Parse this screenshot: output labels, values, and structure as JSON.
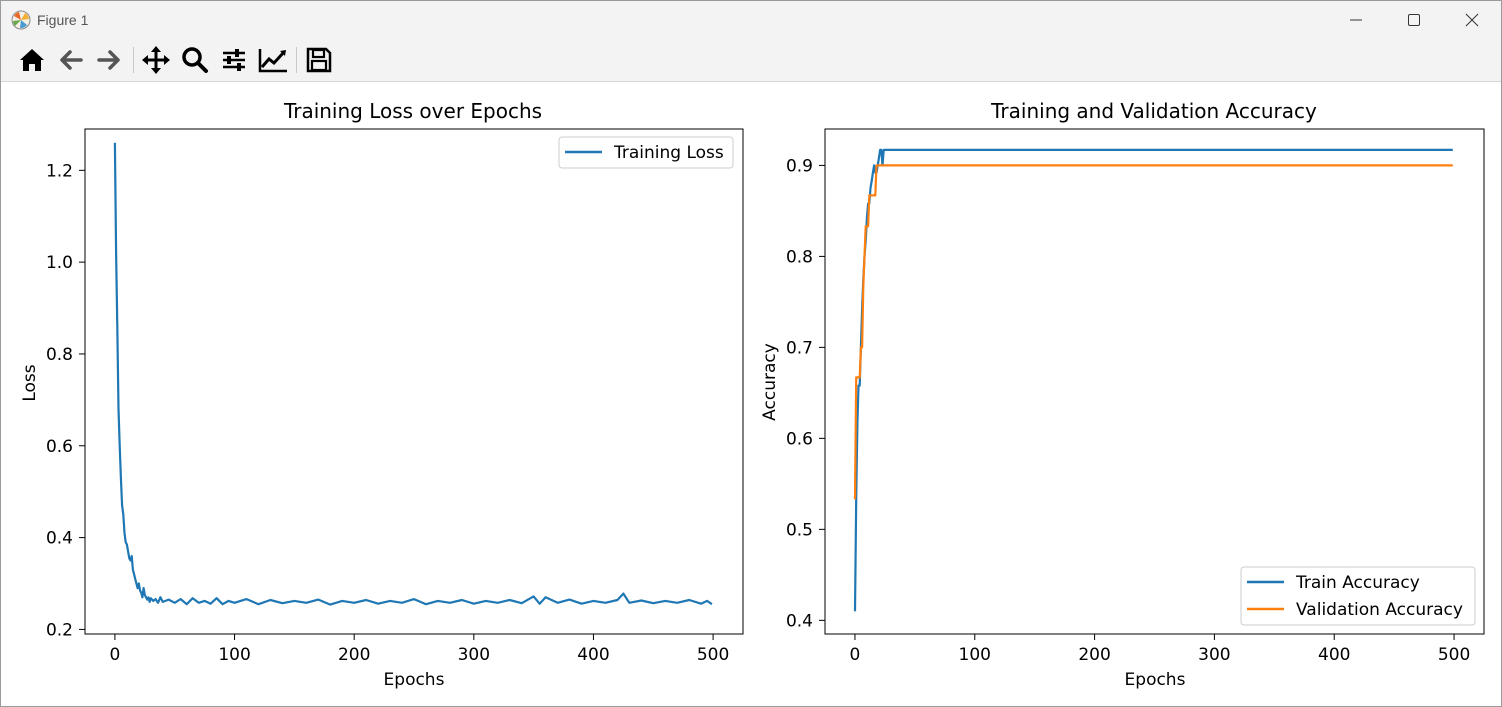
{
  "window": {
    "title": "Figure 1",
    "controls": {
      "minimize": "minimize",
      "maximize": "maximize",
      "close": "close"
    }
  },
  "toolbar": {
    "tools": [
      {
        "id": "home",
        "icon": "home-icon"
      },
      {
        "id": "back",
        "icon": "arrow-left-icon"
      },
      {
        "id": "forward",
        "icon": "arrow-right-icon"
      },
      {
        "id": "pan",
        "icon": "move-icon"
      },
      {
        "id": "zoom",
        "icon": "magnifier-icon"
      },
      {
        "id": "configure",
        "icon": "sliders-icon"
      },
      {
        "id": "edit",
        "icon": "line-chart-icon"
      },
      {
        "id": "save",
        "icon": "floppy-disk-icon"
      }
    ]
  },
  "chart_data": [
    {
      "type": "line",
      "title": "Training Loss over Epochs",
      "xlabel": "Epochs",
      "ylabel": "Loss",
      "xlim": [
        -25,
        525
      ],
      "ylim": [
        0.19,
        1.29
      ],
      "xticks": [
        "0",
        "100",
        "200",
        "300",
        "400",
        "500"
      ],
      "xtick_values": [
        0,
        100,
        200,
        300,
        400,
        500
      ],
      "yticks": [
        "0.2",
        "0.4",
        "0.6",
        "0.8",
        "1.0",
        "1.2"
      ],
      "ytick_values": [
        0.2,
        0.4,
        0.6,
        0.8,
        1.0,
        1.2
      ],
      "legend": "top-right",
      "grid": false,
      "series": [
        {
          "name": "Training Loss",
          "color": "#1f77b4",
          "x": [
            0,
            1,
            2,
            3,
            4,
            5,
            6,
            7,
            8,
            9,
            10,
            11,
            12,
            13,
            14,
            15,
            16,
            17,
            18,
            19,
            20,
            21,
            22,
            23,
            24,
            25,
            26,
            27,
            28,
            29,
            30,
            32,
            34,
            36,
            38,
            40,
            45,
            50,
            55,
            60,
            65,
            70,
            75,
            80,
            85,
            90,
            95,
            100,
            110,
            120,
            130,
            140,
            150,
            160,
            170,
            180,
            190,
            200,
            210,
            220,
            230,
            240,
            250,
            260,
            270,
            280,
            290,
            300,
            310,
            320,
            330,
            340,
            350,
            355,
            360,
            370,
            380,
            390,
            400,
            410,
            420,
            425,
            430,
            440,
            450,
            460,
            470,
            480,
            490,
            495,
            499
          ],
          "values": [
            1.26,
            1.02,
            0.86,
            0.68,
            0.6,
            0.53,
            0.47,
            0.45,
            0.41,
            0.39,
            0.385,
            0.37,
            0.355,
            0.35,
            0.36,
            0.33,
            0.32,
            0.31,
            0.3,
            0.29,
            0.3,
            0.285,
            0.28,
            0.27,
            0.29,
            0.275,
            0.27,
            0.265,
            0.27,
            0.26,
            0.268,
            0.262,
            0.266,
            0.258,
            0.27,
            0.26,
            0.265,
            0.258,
            0.266,
            0.255,
            0.268,
            0.258,
            0.262,
            0.256,
            0.268,
            0.255,
            0.262,
            0.258,
            0.266,
            0.255,
            0.264,
            0.257,
            0.262,
            0.258,
            0.265,
            0.254,
            0.262,
            0.258,
            0.264,
            0.256,
            0.262,
            0.258,
            0.266,
            0.255,
            0.262,
            0.258,
            0.264,
            0.256,
            0.262,
            0.258,
            0.264,
            0.257,
            0.272,
            0.256,
            0.27,
            0.258,
            0.265,
            0.256,
            0.262,
            0.258,
            0.264,
            0.278,
            0.258,
            0.263,
            0.257,
            0.262,
            0.258,
            0.264,
            0.256,
            0.262,
            0.255
          ]
        }
      ]
    },
    {
      "type": "line",
      "title": "Training and Validation Accuracy",
      "xlabel": "Epochs",
      "ylabel": "Accuracy",
      "xlim": [
        -25,
        525
      ],
      "ylim": [
        0.385,
        0.94
      ],
      "xticks": [
        "0",
        "100",
        "200",
        "300",
        "400",
        "500"
      ],
      "xtick_values": [
        0,
        100,
        200,
        300,
        400,
        500
      ],
      "yticks": [
        "0.4",
        "0.5",
        "0.6",
        "0.7",
        "0.8",
        "0.9"
      ],
      "ytick_values": [
        0.4,
        0.5,
        0.6,
        0.7,
        0.8,
        0.9
      ],
      "legend": "lower-right",
      "grid": false,
      "series": [
        {
          "name": "Train Accuracy",
          "color": "#1f77b4",
          "x": [
            0,
            1,
            2,
            3,
            4,
            5,
            6,
            7,
            8,
            9,
            10,
            11,
            12,
            13,
            14,
            15,
            16,
            17,
            18,
            19,
            20,
            21,
            22,
            23,
            24,
            25,
            30,
            40,
            60,
            100,
            200,
            300,
            400,
            499
          ],
          "values": [
            0.41,
            0.533,
            0.617,
            0.658,
            0.658,
            0.7,
            0.742,
            0.775,
            0.8,
            0.817,
            0.842,
            0.858,
            0.858,
            0.875,
            0.883,
            0.892,
            0.9,
            0.892,
            0.892,
            0.9,
            0.908,
            0.917,
            0.917,
            0.9,
            0.917,
            0.917,
            0.917,
            0.917,
            0.917,
            0.917,
            0.917,
            0.917,
            0.917,
            0.917
          ]
        },
        {
          "name": "Validation Accuracy",
          "color": "#ff7f0e",
          "x": [
            0,
            1,
            2,
            3,
            4,
            5,
            6,
            7,
            8,
            9,
            10,
            11,
            12,
            13,
            14,
            15,
            16,
            17,
            18,
            19,
            20,
            21,
            22,
            30,
            60,
            100,
            200,
            300,
            400,
            499
          ],
          "values": [
            0.533,
            0.667,
            0.667,
            0.667,
            0.667,
            0.7,
            0.7,
            0.767,
            0.8,
            0.833,
            0.833,
            0.833,
            0.867,
            0.867,
            0.867,
            0.867,
            0.867,
            0.867,
            0.9,
            0.9,
            0.9,
            0.9,
            0.9,
            0.9,
            0.9,
            0.9,
            0.9,
            0.9,
            0.9,
            0.9
          ]
        }
      ]
    }
  ]
}
